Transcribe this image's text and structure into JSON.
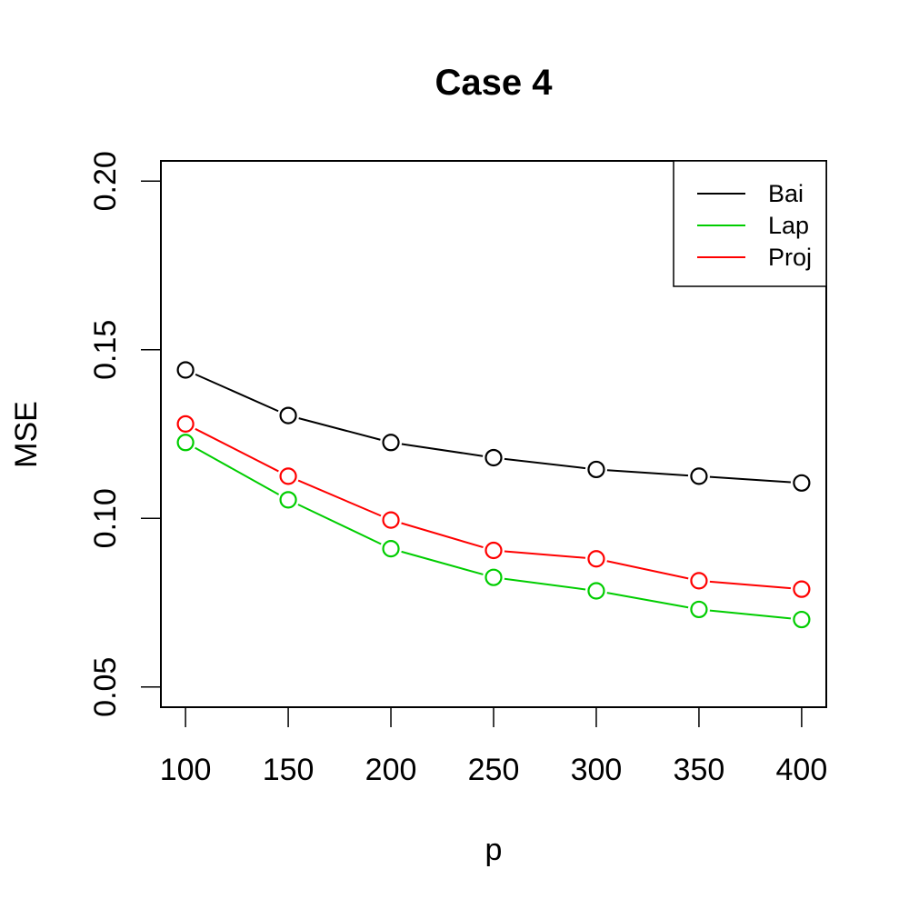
{
  "chart_data": {
    "type": "line",
    "title": "Case 4",
    "xlabel": "p",
    "ylabel": "MSE",
    "xlim": [
      88,
      412
    ],
    "ylim": [
      0.044,
      0.206
    ],
    "x": [
      100,
      150,
      200,
      250,
      300,
      350,
      400
    ],
    "x_ticks": [
      "100",
      "150",
      "200",
      "250",
      "300",
      "350",
      "400"
    ],
    "y_ticks": [
      "0.05",
      "0.10",
      "0.15",
      "0.20"
    ],
    "grid": false,
    "legend_position": "top-right",
    "marker": "open-circle",
    "series": [
      {
        "name": "Bai",
        "color": "#000000",
        "values": [
          0.144,
          0.1305,
          0.1225,
          0.118,
          0.1145,
          0.1125,
          0.1105
        ]
      },
      {
        "name": "Lap",
        "color": "#00cd00",
        "values": [
          0.1225,
          0.1055,
          0.091,
          0.0825,
          0.0785,
          0.073,
          0.07
        ]
      },
      {
        "name": "Proj",
        "color": "#ff0000",
        "values": [
          0.128,
          0.1125,
          0.0995,
          0.0905,
          0.088,
          0.0815,
          0.079
        ]
      }
    ]
  }
}
